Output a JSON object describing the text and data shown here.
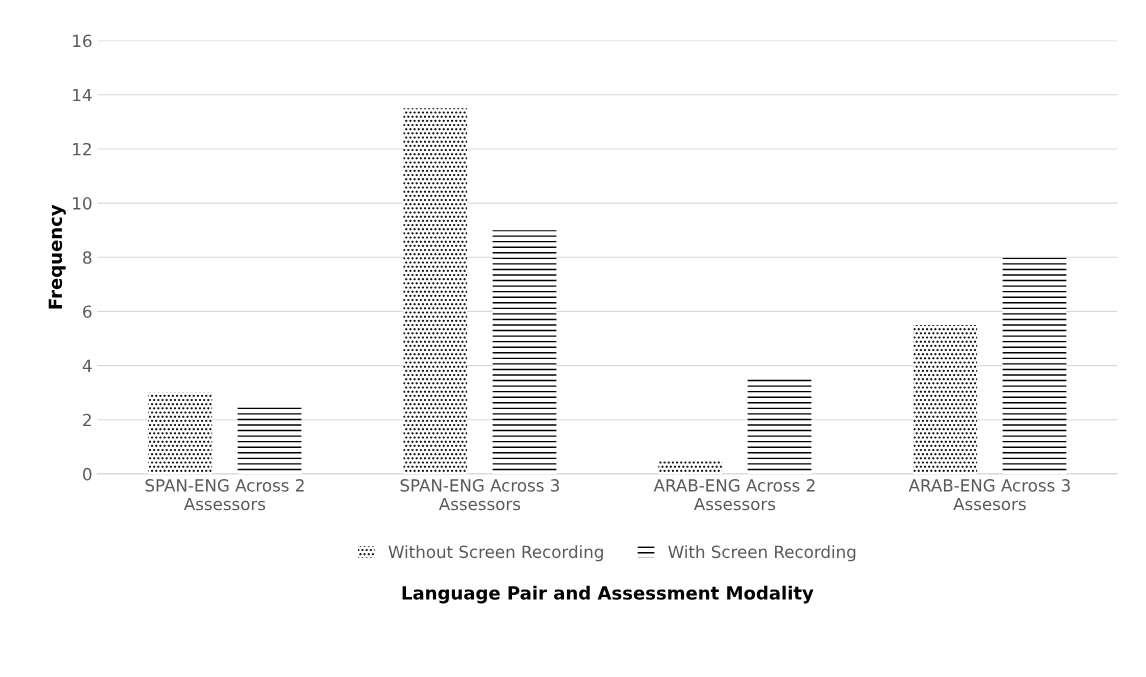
{
  "chart_data": {
    "type": "bar",
    "xlabel": "Language Pair and Assessment Modality",
    "ylabel": "Frequency",
    "categories": [
      "SPAN-ENG Across 2 Assessors",
      "SPAN-ENG Across 3 Assessors",
      "ARAB-ENG Across 2 Assessors",
      "ARAB-ENG Across 3 Assesors"
    ],
    "series": [
      {
        "name": "Without Screen Recording",
        "color": "#000000",
        "values": [
          3,
          13.5,
          0.5,
          5.5
        ]
      },
      {
        "name": "With Screen Recording",
        "color": "#000000",
        "values": [
          2.5,
          9,
          3.5,
          8
        ]
      }
    ],
    "ylim": [
      0,
      16
    ],
    "yticks": [
      0,
      2,
      4,
      6,
      8,
      10,
      12,
      14,
      16
    ],
    "grid": "y",
    "legend": "bottom"
  }
}
